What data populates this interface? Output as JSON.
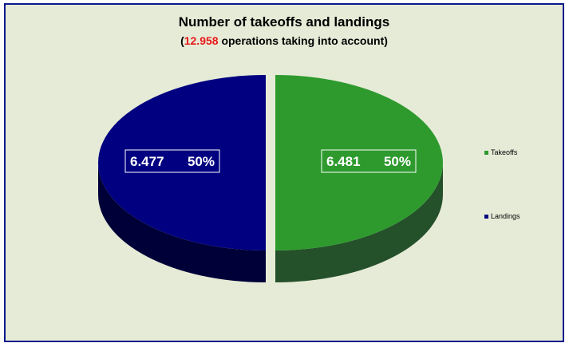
{
  "chart_data": {
    "type": "pie",
    "title": "Number of takeoffs and landings",
    "subtitle": {
      "prefix": "(",
      "highlight": "12.958",
      "suffix": " operations taking into account)"
    },
    "slices": [
      {
        "label": "Takeoffs",
        "value": 6.481,
        "percent": "50%",
        "value_text": "6.481",
        "color": "#2e9a2e",
        "side_color": "#24502a"
      },
      {
        "label": "Landings",
        "value": 6.477,
        "percent": "50%",
        "value_text": "6.477",
        "color": "#000080",
        "side_color": "#000038"
      }
    ],
    "legend_position": "right"
  },
  "colors": {
    "background": "#e6ebd7",
    "border": "#0a1a8a",
    "highlight": "#e81818"
  }
}
